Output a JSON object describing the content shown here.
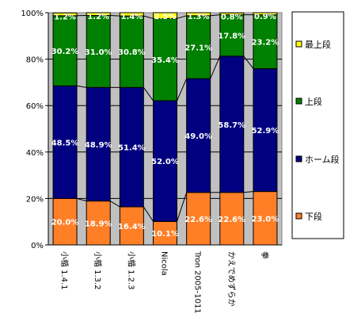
{
  "chart_data": {
    "type": "bar",
    "stacked": true,
    "normalized": true,
    "categories": [
      "小楯 1.4.1",
      "小楯 1.3.2",
      "小楯 1.2.3",
      "Nicola",
      "Tron 2005-1011",
      "かえでめずらか",
      "拳"
    ],
    "series": [
      {
        "name": "下段",
        "color": "#ff7f27",
        "values": [
          20.0,
          18.9,
          16.4,
          10.1,
          22.6,
          22.6,
          23.0
        ]
      },
      {
        "name": "ホーム段",
        "color": "#000080",
        "values": [
          48.5,
          48.9,
          51.4,
          52.0,
          49.0,
          58.7,
          52.9
        ]
      },
      {
        "name": "上段",
        "color": "#008000",
        "values": [
          30.2,
          31.0,
          30.8,
          35.4,
          27.1,
          17.8,
          23.2
        ]
      },
      {
        "name": "最上段",
        "color": "#ffff00",
        "values": [
          1.2,
          1.2,
          1.4,
          2.5,
          1.3,
          0.8,
          0.9
        ]
      }
    ],
    "ylim": [
      0,
      100
    ],
    "yticks": [
      "0%",
      "20%",
      "40%",
      "60%",
      "80%",
      "100%"
    ],
    "grid": true,
    "legend_position": "right",
    "series_lines": true,
    "plot_background": "#c0c0c0"
  }
}
